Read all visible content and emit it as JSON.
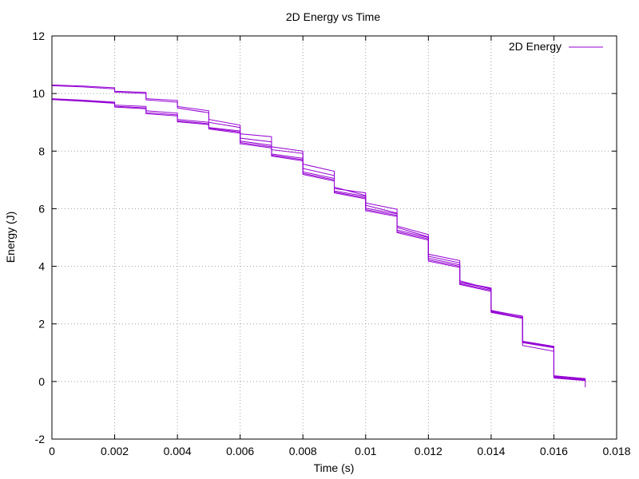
{
  "chart_data": {
    "type": "line",
    "title": "2D Energy vs Time",
    "xlabel": "Time (s)",
    "ylabel": "Energy (J)",
    "xlim": [
      0,
      0.018
    ],
    "ylim": [
      -2,
      12
    ],
    "grid": true,
    "legend_placement": "top-right",
    "x_ticks": [
      "0",
      "0.002",
      "0.004",
      "0.006",
      "0.008",
      "0.01",
      "0.012",
      "0.014",
      "0.016",
      "0.018"
    ],
    "y_ticks": [
      "-2",
      "0",
      "2",
      "4",
      "6",
      "8",
      "10",
      "12"
    ],
    "series_color": "#9400d3",
    "legend_label": "2D Energy",
    "series": [
      {
        "values": [
          [
            0,
            10.3
          ],
          [
            0.001,
            10.26
          ],
          [
            0.002,
            10.2
          ],
          [
            0.002,
            10.08
          ],
          [
            0.003,
            10.04
          ],
          [
            0.003,
            9.82
          ],
          [
            0.004,
            9.76
          ],
          [
            0.004,
            9.55
          ],
          [
            0.005,
            9.4
          ],
          [
            0.005,
            9.1
          ],
          [
            0.006,
            8.9
          ],
          [
            0.006,
            8.6
          ],
          [
            0.007,
            8.5
          ],
          [
            0.007,
            8.15
          ],
          [
            0.008,
            8.0
          ],
          [
            0.008,
            7.55
          ],
          [
            0.009,
            7.3
          ],
          [
            0.009,
            6.7
          ],
          [
            0.01,
            6.55
          ],
          [
            0.01,
            6.2
          ],
          [
            0.011,
            5.98
          ],
          [
            0.011,
            5.4
          ],
          [
            0.012,
            5.1
          ],
          [
            0.012,
            4.42
          ],
          [
            0.013,
            4.2
          ],
          [
            0.013,
            3.45
          ],
          [
            0.014,
            3.25
          ],
          [
            0.014,
            2.45
          ],
          [
            0.015,
            2.27
          ],
          [
            0.015,
            1.4
          ],
          [
            0.016,
            1.22
          ],
          [
            0.016,
            0.2
          ],
          [
            0.017,
            0.1
          ],
          [
            0.017,
            -0.2
          ]
        ]
      },
      {
        "values": [
          [
            0,
            10.27
          ],
          [
            0.001,
            10.23
          ],
          [
            0.002,
            10.16
          ],
          [
            0.002,
            10.05
          ],
          [
            0.003,
            10.0
          ],
          [
            0.003,
            9.78
          ],
          [
            0.004,
            9.7
          ],
          [
            0.004,
            9.5
          ],
          [
            0.005,
            9.33
          ],
          [
            0.005,
            9.0
          ],
          [
            0.006,
            8.82
          ],
          [
            0.006,
            8.45
          ],
          [
            0.007,
            8.32
          ],
          [
            0.007,
            8.05
          ],
          [
            0.008,
            7.92
          ],
          [
            0.008,
            7.4
          ],
          [
            0.009,
            7.15
          ],
          [
            0.009,
            6.75
          ],
          [
            0.01,
            6.46
          ],
          [
            0.01,
            6.12
          ],
          [
            0.011,
            5.85
          ],
          [
            0.011,
            5.35
          ],
          [
            0.012,
            5.02
          ],
          [
            0.012,
            4.35
          ],
          [
            0.013,
            4.12
          ],
          [
            0.013,
            3.5
          ],
          [
            0.014,
            3.2
          ],
          [
            0.014,
            2.42
          ],
          [
            0.015,
            2.22
          ],
          [
            0.015,
            1.36
          ],
          [
            0.016,
            1.18
          ],
          [
            0.016,
            0.18
          ],
          [
            0.017,
            0.06
          ]
        ]
      },
      {
        "values": [
          [
            0,
            9.82
          ],
          [
            0.001,
            9.77
          ],
          [
            0.002,
            9.7
          ],
          [
            0.002,
            9.6
          ],
          [
            0.003,
            9.55
          ],
          [
            0.003,
            9.4
          ],
          [
            0.004,
            9.32
          ],
          [
            0.004,
            9.1
          ],
          [
            0.005,
            9.0
          ],
          [
            0.005,
            8.82
          ],
          [
            0.006,
            8.7
          ],
          [
            0.006,
            8.35
          ],
          [
            0.007,
            8.2
          ],
          [
            0.007,
            7.9
          ],
          [
            0.008,
            7.75
          ],
          [
            0.008,
            7.28
          ],
          [
            0.009,
            7.05
          ],
          [
            0.009,
            6.62
          ],
          [
            0.01,
            6.43
          ],
          [
            0.01,
            6.02
          ],
          [
            0.011,
            5.82
          ],
          [
            0.011,
            5.26
          ],
          [
            0.012,
            5.0
          ],
          [
            0.012,
            4.28
          ],
          [
            0.013,
            4.05
          ],
          [
            0.013,
            3.44
          ],
          [
            0.014,
            3.22
          ],
          [
            0.014,
            2.47
          ],
          [
            0.015,
            2.26
          ],
          [
            0.015,
            1.38
          ],
          [
            0.016,
            1.2
          ],
          [
            0.016,
            0.16
          ],
          [
            0.017,
            0.08
          ]
        ]
      },
      {
        "values": [
          [
            0,
            9.8
          ],
          [
            0.001,
            9.75
          ],
          [
            0.002,
            9.68
          ],
          [
            0.002,
            9.56
          ],
          [
            0.003,
            9.5
          ],
          [
            0.003,
            9.34
          ],
          [
            0.004,
            9.26
          ],
          [
            0.004,
            9.05
          ],
          [
            0.005,
            8.95
          ],
          [
            0.005,
            8.8
          ],
          [
            0.006,
            8.66
          ],
          [
            0.006,
            8.3
          ],
          [
            0.007,
            8.15
          ],
          [
            0.007,
            7.86
          ],
          [
            0.008,
            7.7
          ],
          [
            0.008,
            7.23
          ],
          [
            0.009,
            7.0
          ],
          [
            0.009,
            6.58
          ],
          [
            0.01,
            6.38
          ],
          [
            0.01,
            5.97
          ],
          [
            0.011,
            5.77
          ],
          [
            0.011,
            5.21
          ],
          [
            0.012,
            4.95
          ],
          [
            0.012,
            4.22
          ],
          [
            0.013,
            4.0
          ],
          [
            0.013,
            3.4
          ],
          [
            0.014,
            3.17
          ],
          [
            0.014,
            2.43
          ],
          [
            0.015,
            2.22
          ],
          [
            0.015,
            1.35
          ],
          [
            0.016,
            1.17
          ],
          [
            0.016,
            0.14
          ],
          [
            0.017,
            0.05
          ]
        ]
      },
      {
        "values": [
          [
            0,
            9.79
          ],
          [
            0.001,
            9.73
          ],
          [
            0.002,
            9.66
          ],
          [
            0.002,
            9.53
          ],
          [
            0.003,
            9.47
          ],
          [
            0.003,
            9.3
          ],
          [
            0.004,
            9.22
          ],
          [
            0.004,
            9.02
          ],
          [
            0.005,
            8.92
          ],
          [
            0.005,
            8.77
          ],
          [
            0.006,
            8.62
          ],
          [
            0.006,
            8.26
          ],
          [
            0.007,
            8.11
          ],
          [
            0.007,
            7.83
          ],
          [
            0.008,
            7.66
          ],
          [
            0.008,
            7.19
          ],
          [
            0.009,
            6.96
          ],
          [
            0.009,
            6.55
          ],
          [
            0.01,
            6.34
          ],
          [
            0.01,
            5.93
          ],
          [
            0.011,
            5.73
          ],
          [
            0.011,
            5.17
          ],
          [
            0.012,
            4.91
          ],
          [
            0.012,
            4.18
          ],
          [
            0.013,
            3.96
          ],
          [
            0.013,
            3.37
          ],
          [
            0.014,
            3.13
          ],
          [
            0.014,
            2.4
          ],
          [
            0.015,
            2.19
          ],
          [
            0.015,
            1.25
          ],
          [
            0.016,
            1.05
          ],
          [
            0.016,
            0.12
          ],
          [
            0.017,
            0.03
          ]
        ]
      }
    ]
  }
}
